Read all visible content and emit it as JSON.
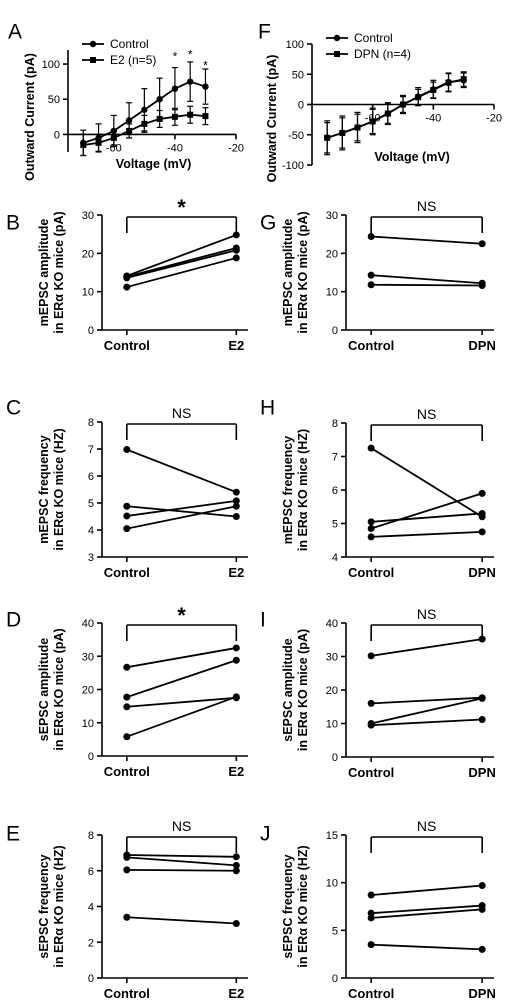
{
  "chart_data": [
    {
      "id": "A",
      "type": "line",
      "panel_label": "A",
      "ylabel": "Outward Current (pA)",
      "xlabel": "Voltage (mV)",
      "xlim": [
        -75,
        -20
      ],
      "ylim": [
        -25,
        120
      ],
      "xticks": [
        -60,
        -40,
        -20
      ],
      "yticks": [
        0,
        50,
        100
      ],
      "legend": [
        "Control",
        "E2 (n=5)"
      ],
      "series": [
        {
          "name": "Control",
          "marker": "circle",
          "x": [
            -70,
            -65,
            -60,
            -55,
            -50,
            -45,
            -40,
            -35,
            -30
          ],
          "y": [
            -12,
            -5,
            5,
            20,
            35,
            50,
            65,
            75,
            68
          ],
          "err": [
            18,
            20,
            22,
            25,
            30,
            30,
            30,
            28,
            25
          ]
        },
        {
          "name": "E2 (n=5)",
          "marker": "square",
          "x": [
            -70,
            -65,
            -60,
            -55,
            -50,
            -45,
            -40,
            -35,
            -30
          ],
          "y": [
            -15,
            -12,
            -5,
            5,
            15,
            22,
            25,
            28,
            26
          ],
          "err": [
            15,
            12,
            10,
            10,
            12,
            12,
            12,
            12,
            12
          ]
        }
      ],
      "annotations": [
        {
          "text": "*",
          "x": -40,
          "y": 105
        },
        {
          "text": "*",
          "x": -35,
          "y": 108
        },
        {
          "text": "*",
          "x": -30,
          "y": 92
        }
      ]
    },
    {
      "id": "F",
      "type": "line",
      "panel_label": "F",
      "ylabel": "Outward Current (pA)",
      "xlabel": "Voltage (mV)",
      "xlim": [
        -80,
        -20
      ],
      "ylim": [
        -100,
        100
      ],
      "xticks": [
        -60,
        -40,
        -20
      ],
      "yticks": [
        -100,
        -50,
        0,
        50,
        100
      ],
      "legend": [
        "Control",
        "DPN (n=4)"
      ],
      "series": [
        {
          "name": "Control",
          "marker": "circle",
          "x": [
            -75,
            -70,
            -65,
            -60,
            -55,
            -50,
            -45,
            -40,
            -35,
            -30
          ],
          "y": [
            -55,
            -47,
            -38,
            -28,
            -15,
            0,
            13,
            25,
            37,
            40
          ],
          "err": [
            28,
            28,
            25,
            22,
            18,
            15,
            15,
            15,
            15,
            12
          ]
        },
        {
          "name": "DPN (n=4)",
          "marker": "square",
          "x": [
            -75,
            -70,
            -65,
            -60,
            -55,
            -50,
            -45,
            -40,
            -35,
            -30
          ],
          "y": [
            -55,
            -47,
            -38,
            -28,
            -15,
            0,
            12,
            24,
            36,
            42
          ],
          "err": [
            25,
            25,
            22,
            20,
            16,
            13,
            13,
            13,
            15,
            12
          ]
        }
      ]
    },
    {
      "id": "B",
      "type": "paired",
      "panel_label": "B",
      "ylabel": [
        "mEPSC amplitude",
        "in ERα KO mice (pA)"
      ],
      "categories": [
        "Control",
        "E2"
      ],
      "ylim": [
        0,
        30
      ],
      "yticks": [
        0,
        10,
        20,
        30
      ],
      "pairs": [
        [
          11.2,
          18.8
        ],
        [
          13.6,
          20.8
        ],
        [
          13.9,
          21.4
        ],
        [
          14.1,
          24.8
        ]
      ],
      "significance": "*"
    },
    {
      "id": "G",
      "type": "paired",
      "panel_label": "G",
      "ylabel": [
        "mEPSC amplitude",
        "in ERα KO mice (pA)"
      ],
      "categories": [
        "Control",
        "DPN"
      ],
      "ylim": [
        0,
        30
      ],
      "yticks": [
        0,
        10,
        20,
        30
      ],
      "pairs": [
        [
          11.8,
          11.6
        ],
        [
          14.3,
          12.2
        ],
        [
          24.4,
          22.5
        ]
      ],
      "significance": "NS"
    },
    {
      "id": "C",
      "type": "paired",
      "panel_label": "C",
      "ylabel": [
        "mEPSC frequency",
        "in ERα KO mice (HZ)"
      ],
      "categories": [
        "Control",
        "E2"
      ],
      "ylim": [
        3,
        8
      ],
      "yticks": [
        3,
        4,
        5,
        6,
        7,
        8
      ],
      "pairs": [
        [
          4.05,
          4.88
        ],
        [
          4.52,
          5.08
        ],
        [
          4.88,
          4.5
        ],
        [
          6.98,
          5.4
        ]
      ],
      "significance": "NS"
    },
    {
      "id": "H",
      "type": "paired",
      "panel_label": "H",
      "ylabel": [
        "mEPSC frequency",
        "in ERα KO mice (HZ)"
      ],
      "categories": [
        "Control",
        "DPN"
      ],
      "ylim": [
        4,
        8
      ],
      "yticks": [
        4,
        5,
        6,
        7,
        8
      ],
      "pairs": [
        [
          4.6,
          4.75
        ],
        [
          4.85,
          5.9
        ],
        [
          5.05,
          5.3
        ],
        [
          7.25,
          5.2
        ]
      ],
      "significance": "NS"
    },
    {
      "id": "D",
      "type": "paired",
      "panel_label": "D",
      "ylabel": [
        "sEPSC amplitude",
        "in ERα KO mice (pA)"
      ],
      "categories": [
        "Control",
        "E2"
      ],
      "ylim": [
        0,
        40
      ],
      "yticks": [
        0,
        10,
        20,
        30,
        40
      ],
      "pairs": [
        [
          5.8,
          17.8
        ],
        [
          14.8,
          17.5
        ],
        [
          17.7,
          28.8
        ],
        [
          26.7,
          32.5
        ]
      ],
      "significance": "*"
    },
    {
      "id": "I",
      "type": "paired",
      "panel_label": "I",
      "ylabel": [
        "sEPSC amplitude",
        "in ERα KO mice (pA)"
      ],
      "categories": [
        "Control",
        "DPN"
      ],
      "ylim": [
        0,
        40
      ],
      "yticks": [
        0,
        10,
        20,
        30,
        40
      ],
      "pairs": [
        [
          9.5,
          11.2
        ],
        [
          10.0,
          17.5
        ],
        [
          16.0,
          17.7
        ],
        [
          30.2,
          35.2
        ]
      ],
      "significance": "NS"
    },
    {
      "id": "E",
      "type": "paired",
      "panel_label": "E",
      "ylabel": [
        "sEPSC frequency",
        "in ERα KO mice (HZ)"
      ],
      "categories": [
        "Control",
        "E2"
      ],
      "ylim": [
        0,
        8
      ],
      "yticks": [
        0,
        2,
        4,
        6,
        8
      ],
      "pairs": [
        [
          3.4,
          3.05
        ],
        [
          6.05,
          6.0
        ],
        [
          6.75,
          6.3
        ],
        [
          6.88,
          6.78
        ]
      ],
      "significance": "NS"
    },
    {
      "id": "J",
      "type": "paired",
      "panel_label": "J",
      "ylabel": [
        "sEPSC frequency",
        "in ERα KO mice (HZ)"
      ],
      "categories": [
        "Control",
        "DPN"
      ],
      "ylim": [
        0,
        15
      ],
      "yticks": [
        0,
        5,
        10,
        15
      ],
      "pairs": [
        [
          3.5,
          3.0
        ],
        [
          6.3,
          7.2
        ],
        [
          6.8,
          7.6
        ],
        [
          8.7,
          9.7
        ]
      ],
      "significance": "NS"
    }
  ]
}
